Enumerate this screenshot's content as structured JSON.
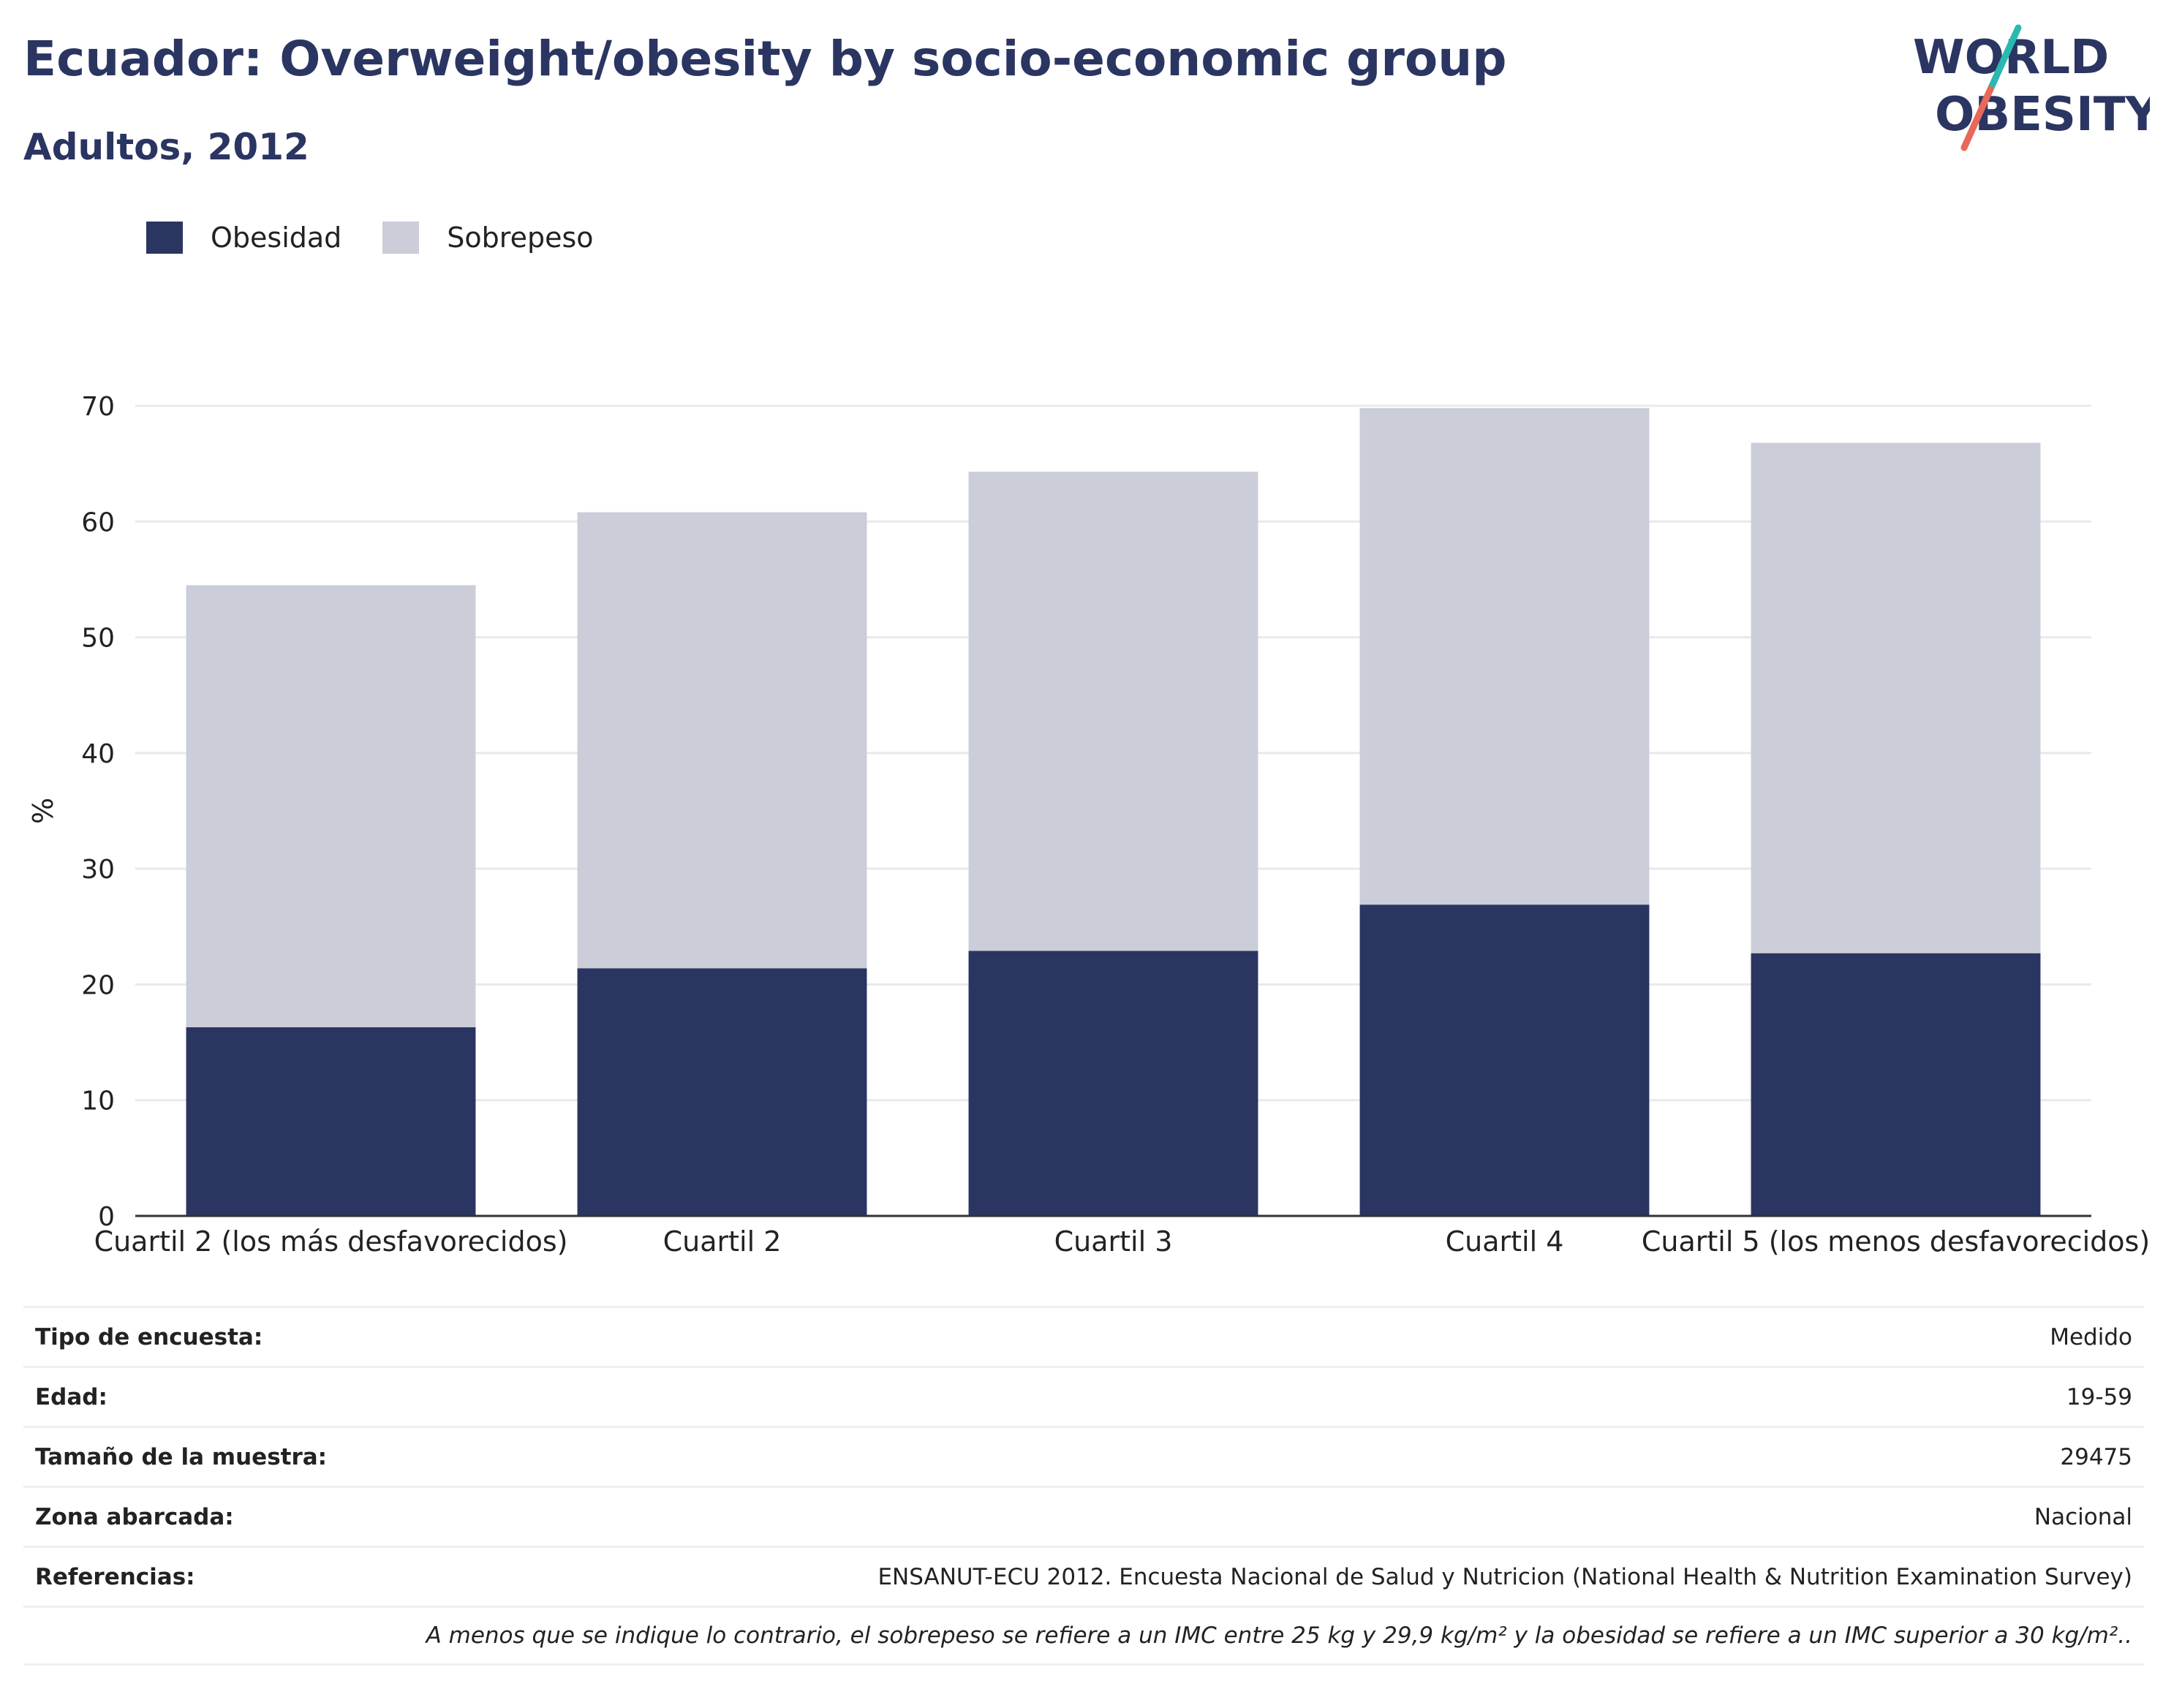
{
  "header": {
    "title": "Ecuador: Overweight/obesity by socio-economic group",
    "subtitle": "Adultos, 2012"
  },
  "logo": {
    "line1": "WORLD",
    "line2": "OBESITY",
    "text_color": "#2a3562",
    "accent_teal": "#2bb8b2",
    "accent_coral": "#e8685a"
  },
  "colors": {
    "obesidad": "#2a3562",
    "sobrepeso": "#cbcdd9",
    "grid": "#e8e9ee",
    "axis": "#333333"
  },
  "chart_data": {
    "type": "bar",
    "stacked": true,
    "categories": [
      "Cuartil 2 (los más desfavorecidos)",
      "Cuartil 2",
      "Cuartil 3",
      "Cuartil 4",
      "Cuartil 5 (los menos desfavorecidos)"
    ],
    "series": [
      {
        "name": "Obesidad",
        "values": [
          16.3,
          21.4,
          22.9,
          26.9,
          22.7
        ]
      },
      {
        "name": "Sobrepeso",
        "values": [
          38.2,
          39.4,
          41.4,
          42.9,
          44.1
        ]
      }
    ],
    "ylabel": "%",
    "ylim": [
      0,
      70
    ],
    "yticks": [
      0,
      10,
      20,
      30,
      40,
      50,
      60,
      70
    ],
    "grid": true,
    "legend_position": "top-left"
  },
  "info": {
    "rows": [
      {
        "key": "Tipo de encuesta:",
        "value": "Medido"
      },
      {
        "key": "Edad:",
        "value": "19-59"
      },
      {
        "key": "Tamaño de la muestra:",
        "value": "29475"
      },
      {
        "key": "Zona abarcada:",
        "value": "Nacional"
      },
      {
        "key": "Referencias:",
        "value": "ENSANUT-ECU 2012. Encuesta Nacional de Salud y Nutricion (National Health & Nutrition Examination Survey)"
      }
    ],
    "note": "A menos que se indique lo contrario, el sobrepeso se refiere a un IMC entre 25 kg y 29,9 kg/m² y la obesidad se refiere a un IMC superior a 30 kg/m².."
  }
}
